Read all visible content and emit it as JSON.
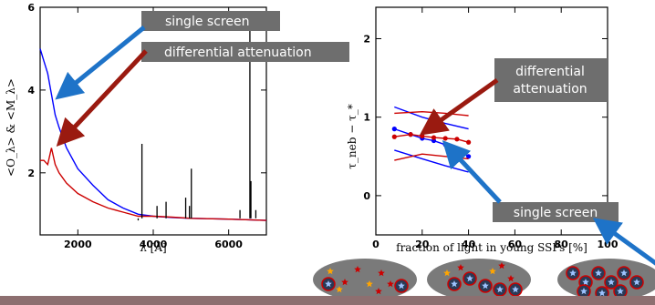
{
  "chart_data": [
    {
      "type": "line",
      "xlabel": "λ [Å]",
      "ylabel": "<O_λ> & <M_λ>",
      "xlim": [
        1000,
        7000
      ],
      "ylim": [
        0.5,
        6
      ],
      "x_ticks": [
        "2000",
        "4000",
        "6000"
      ],
      "y_ticks": [
        "2",
        "4",
        "6"
      ],
      "series": [
        {
          "color": "#0000ff",
          "x": [
            1000,
            1100,
            1200,
            1300,
            1400,
            1500,
            1700,
            2000,
            2400,
            2800,
            3200,
            3600,
            4000,
            4500,
            5000,
            6000,
            7000
          ],
          "values": [
            5.0,
            4.7,
            4.4,
            3.9,
            3.4,
            3.1,
            2.6,
            2.1,
            1.7,
            1.35,
            1.15,
            1.0,
            0.95,
            0.92,
            0.9,
            0.88,
            0.85
          ]
        },
        {
          "color": "#cc0000",
          "x": [
            1000,
            1100,
            1200,
            1300,
            1400,
            1500,
            1700,
            2000,
            2400,
            2800,
            3200,
            3600,
            4000,
            4500,
            5000,
            6000,
            7000
          ],
          "values": [
            2.3,
            2.3,
            2.2,
            2.6,
            2.2,
            2.0,
            1.75,
            1.5,
            1.3,
            1.15,
            1.05,
            0.95,
            0.95,
            0.93,
            0.9,
            0.88,
            0.85
          ]
        },
        {
          "color": "#000000",
          "x": [
            3600,
            3700,
            4100,
            4340,
            4860,
            4960,
            5010,
            6300,
            6563,
            6590,
            6720
          ],
          "values": [
            0.85,
            2.7,
            1.2,
            1.3,
            1.4,
            1.2,
            2.1,
            1.1,
            5.9,
            1.8,
            1.1
          ]
        }
      ]
    },
    {
      "type": "line",
      "xlabel": "fraction of light in young SSPs [%]",
      "ylabel": "τ_neb − τ_*",
      "xlim": [
        0,
        100
      ],
      "ylim": [
        -0.5,
        2.4
      ],
      "x_ticks": [
        "0",
        "20",
        "40",
        "60",
        "80",
        "100"
      ],
      "y_ticks": [
        "0",
        "1",
        "2"
      ],
      "series": [
        {
          "color": "#0000ff",
          "x": [
            8,
            15,
            20,
            25,
            30,
            35,
            40
          ],
          "values": [
            0.85,
            0.78,
            0.73,
            0.7,
            0.65,
            0.58,
            0.5
          ]
        },
        {
          "color": "#cc0000",
          "x": [
            8,
            15,
            20,
            25,
            30,
            35,
            40
          ],
          "values": [
            0.75,
            0.78,
            0.76,
            0.74,
            0.73,
            0.72,
            0.68
          ]
        },
        {
          "color": "#0000ff",
          "x": [
            8,
            20,
            30,
            40
          ],
          "values": [
            1.13,
            1.0,
            0.92,
            0.85
          ]
        },
        {
          "color": "#0000ff",
          "x": [
            8,
            20,
            30,
            40
          ],
          "values": [
            0.58,
            0.47,
            0.38,
            0.3
          ]
        },
        {
          "color": "#cc0000",
          "x": [
            8,
            20,
            30,
            40
          ],
          "values": [
            1.05,
            1.07,
            1.05,
            1.02
          ]
        },
        {
          "color": "#cc0000",
          "x": [
            8,
            20,
            30,
            40
          ],
          "values": [
            0.45,
            0.53,
            0.5,
            0.47
          ]
        }
      ]
    }
  ],
  "annotations": {
    "single_screen": "single screen",
    "differential_attenuation": "differential attenuation",
    "differential_attenuation_right": [
      "differential",
      "attenuation"
    ],
    "single_screen_right": "single screen"
  },
  "colors": {
    "blue": "#0000ff",
    "red": "#cc0000",
    "arrow_blue": "#1e73c8",
    "arrow_red": "#9a1a10",
    "box": "#6e6e6e",
    "footer": "#8d6f70",
    "ellipse": "#7a7a7a",
    "star_orange": "#ffa500",
    "star_red": "#cc0000"
  },
  "icons": [
    "galaxy-ellipse-icon",
    "star-icon",
    "dust-cloud-icon"
  ]
}
